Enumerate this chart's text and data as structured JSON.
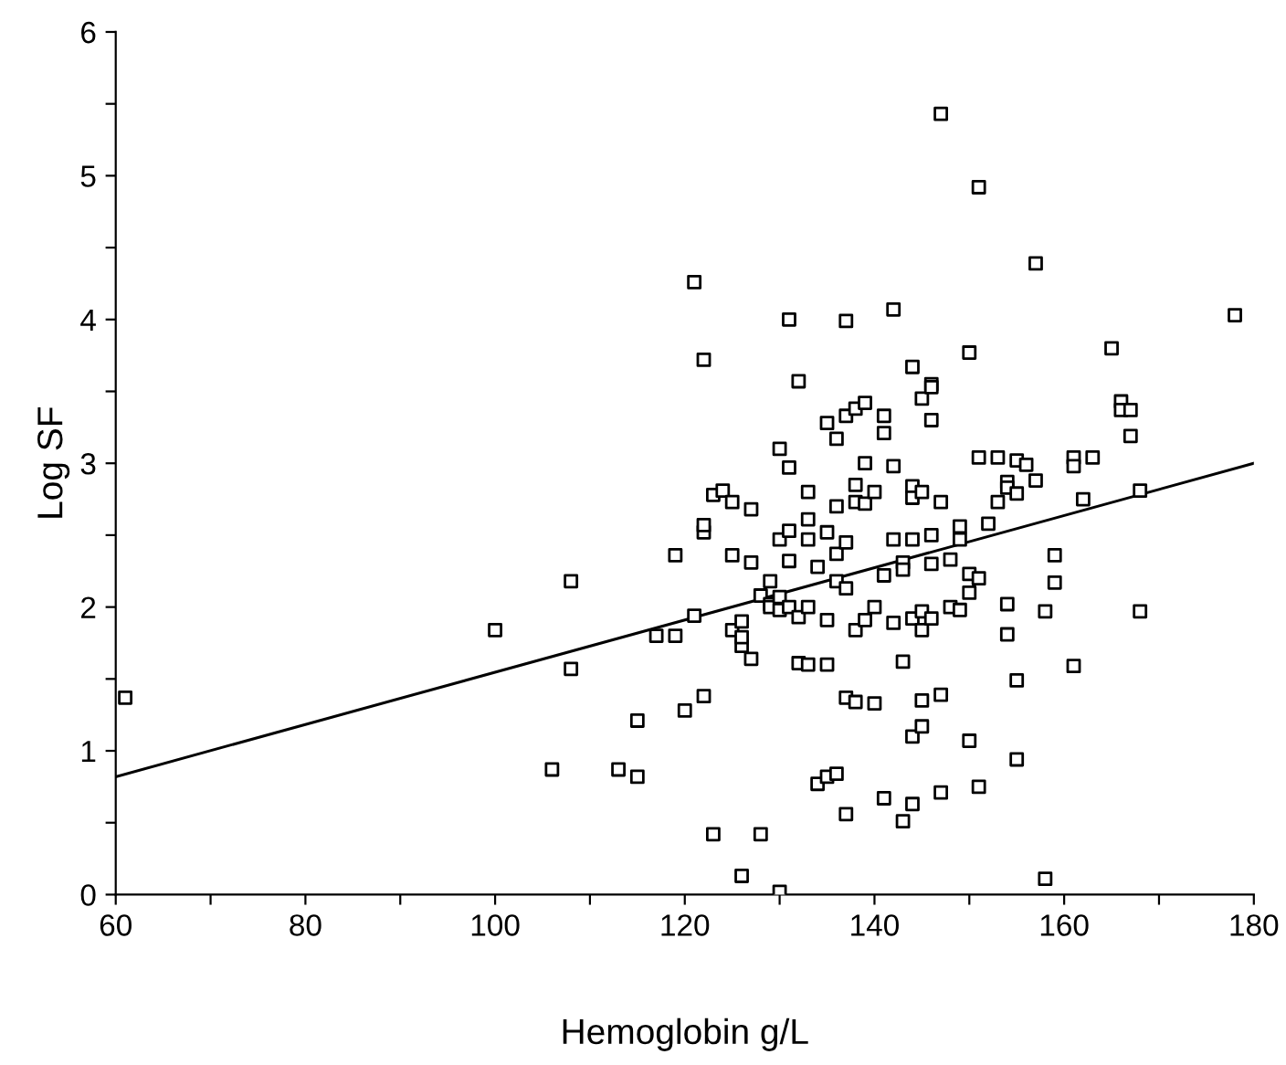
{
  "chart_data": {
    "type": "scatter",
    "xlabel": "Hemoglobin g/L",
    "ylabel": "Log SF",
    "grid": false,
    "xlim": [
      60,
      180
    ],
    "ylim": [
      0,
      6
    ],
    "xticks": [
      60,
      {
        "value": 70,
        "label": null
      },
      80,
      {
        "value": 90,
        "label": null
      },
      100,
      {
        "value": 110,
        "label": null
      },
      120,
      {
        "value": 130,
        "label": null
      },
      140,
      {
        "value": 150,
        "label": null
      },
      160,
      {
        "value": 170,
        "label": null
      },
      180
    ],
    "yticks": [
      0,
      {
        "value": 0.5,
        "label": null
      },
      1,
      {
        "value": 1.5,
        "label": null
      },
      2,
      {
        "value": 2.5,
        "label": null
      },
      3,
      {
        "value": 3.5,
        "label": null
      },
      4,
      {
        "value": 4.5,
        "label": null
      },
      5,
      {
        "value": 5.5,
        "label": null
      },
      6
    ],
    "series": [
      {
        "color": "#000000",
        "marker": "square",
        "x": [
          61,
          100,
          106,
          108,
          108,
          113,
          115,
          115,
          117,
          119,
          119,
          120,
          121,
          121,
          122,
          122,
          122,
          122,
          123,
          123,
          124,
          125,
          125,
          125,
          126,
          126,
          126,
          126,
          127,
          127,
          127,
          128,
          128,
          129,
          129,
          129,
          130,
          130,
          130,
          130,
          130,
          131,
          131,
          131,
          131,
          131,
          132,
          132,
          132,
          133,
          133,
          133,
          133,
          133,
          134,
          134,
          135,
          135,
          135,
          135,
          135,
          136,
          136,
          136,
          136,
          136,
          137,
          137,
          137,
          137,
          137,
          137,
          138,
          138,
          138,
          138,
          138,
          139,
          139,
          139,
          139,
          140,
          140,
          140,
          141,
          141,
          141,
          141,
          142,
          142,
          142,
          142,
          143,
          143,
          143,
          143,
          144,
          144,
          144,
          144,
          144,
          144,
          144,
          145,
          145,
          145,
          145,
          145,
          145,
          146,
          146,
          146,
          146,
          146,
          146,
          147,
          147,
          147,
          147,
          148,
          148,
          149,
          149,
          149,
          150,
          150,
          150,
          150,
          151,
          151,
          151,
          151,
          152,
          153,
          153,
          154,
          154,
          154,
          154,
          155,
          155,
          155,
          155,
          156,
          157,
          157,
          158,
          158,
          159,
          159,
          161,
          161,
          161,
          162,
          163,
          165,
          166,
          166,
          167,
          167,
          168,
          168,
          178
        ],
        "values": [
          1.37,
          1.84,
          0.87,
          2.18,
          1.57,
          0.87,
          0.82,
          1.21,
          1.8,
          1.8,
          2.36,
          1.28,
          1.94,
          4.26,
          2.52,
          2.57,
          3.72,
          1.38,
          2.78,
          0.42,
          2.81,
          2.73,
          2.36,
          1.84,
          1.9,
          1.73,
          1.79,
          0.13,
          2.68,
          1.64,
          2.31,
          2.08,
          0.42,
          2.18,
          2.02,
          2.0,
          3.1,
          2.47,
          2.07,
          1.98,
          0.02,
          4.0,
          2.97,
          2.53,
          2.32,
          2.0,
          3.57,
          1.93,
          1.61,
          2.8,
          2.61,
          2.47,
          2.0,
          1.6,
          2.28,
          0.77,
          3.28,
          2.52,
          1.91,
          1.6,
          0.82,
          3.17,
          2.7,
          2.37,
          2.18,
          0.84,
          3.99,
          3.33,
          2.45,
          2.13,
          1.37,
          0.56,
          3.38,
          2.85,
          2.73,
          1.84,
          1.34,
          3.42,
          3.0,
          2.72,
          1.91,
          2.8,
          2.0,
          1.33,
          3.33,
          3.21,
          2.22,
          0.67,
          4.07,
          2.98,
          2.47,
          1.89,
          2.31,
          1.62,
          0.51,
          2.26,
          3.67,
          2.84,
          2.76,
          2.47,
          1.92,
          1.1,
          0.63,
          3.45,
          2.8,
          1.97,
          1.35,
          1.17,
          1.84,
          3.55,
          3.53,
          3.3,
          2.5,
          2.3,
          1.92,
          5.43,
          2.73,
          1.39,
          0.71,
          2.33,
          2.0,
          1.98,
          2.56,
          2.47,
          3.77,
          2.23,
          2.1,
          1.07,
          4.92,
          3.04,
          2.2,
          0.75,
          2.58,
          3.04,
          2.73,
          2.87,
          2.83,
          2.02,
          1.81,
          3.02,
          2.79,
          1.49,
          0.94,
          2.99,
          4.39,
          2.88,
          0.11,
          1.97,
          2.36,
          2.17,
          3.04,
          2.98,
          1.59,
          2.75,
          3.04,
          3.8,
          3.43,
          3.37,
          3.37,
          3.19,
          2.81,
          1.97,
          4.03
        ]
      },
      {
        "type": "line",
        "color": "#000000",
        "marker": "none",
        "x": [
          60,
          180
        ],
        "values": [
          0.82,
          3.0
        ]
      }
    ]
  }
}
